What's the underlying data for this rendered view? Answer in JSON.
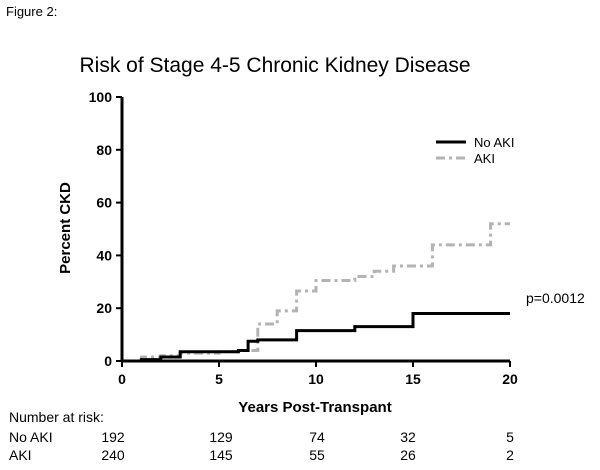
{
  "figure_label": "Figure 2:",
  "colors": {
    "no_aki": "#000000",
    "aki": "#b3b3b3",
    "axis": "#000000"
  },
  "chart_data": {
    "type": "line",
    "step": true,
    "title": "Risk of Stage 4-5 Chronic Kidney Disease",
    "xlabel": "Years Post-Transpant",
    "ylabel": "Percent CKD",
    "xlim": [
      0,
      20
    ],
    "ylim": [
      0,
      100
    ],
    "xticks": [
      0,
      5,
      10,
      15,
      20
    ],
    "yticks": [
      0,
      20,
      40,
      60,
      80,
      100
    ],
    "legend_position": "top-right",
    "annotation": "p=0.0012",
    "series": [
      {
        "name": "No AKI",
        "style": "solid",
        "x": [
          0,
          1,
          2,
          3,
          6,
          6.5,
          7,
          9,
          12,
          15,
          20
        ],
        "y": [
          0,
          0.5,
          1.5,
          3.5,
          4,
          7.5,
          8,
          11.5,
          13,
          18,
          18
        ]
      },
      {
        "name": "AKI",
        "style": "dashed",
        "x": [
          0,
          1,
          2,
          3,
          5,
          6,
          7,
          8,
          9,
          10,
          12,
          13,
          14,
          16,
          19,
          20
        ],
        "y": [
          0,
          1.5,
          2,
          3,
          3.5,
          4,
          14,
          19,
          26.5,
          30.5,
          32,
          34,
          36,
          44,
          52,
          52
        ]
      }
    ]
  },
  "risk_table": {
    "heading": "Number at risk:",
    "rows": [
      {
        "label": "No AKI",
        "values": [
          "192",
          "129",
          "74",
          "32",
          "5"
        ]
      },
      {
        "label": "AKI",
        "values": [
          "240",
          "145",
          "55",
          "26",
          "2"
        ]
      }
    ]
  }
}
